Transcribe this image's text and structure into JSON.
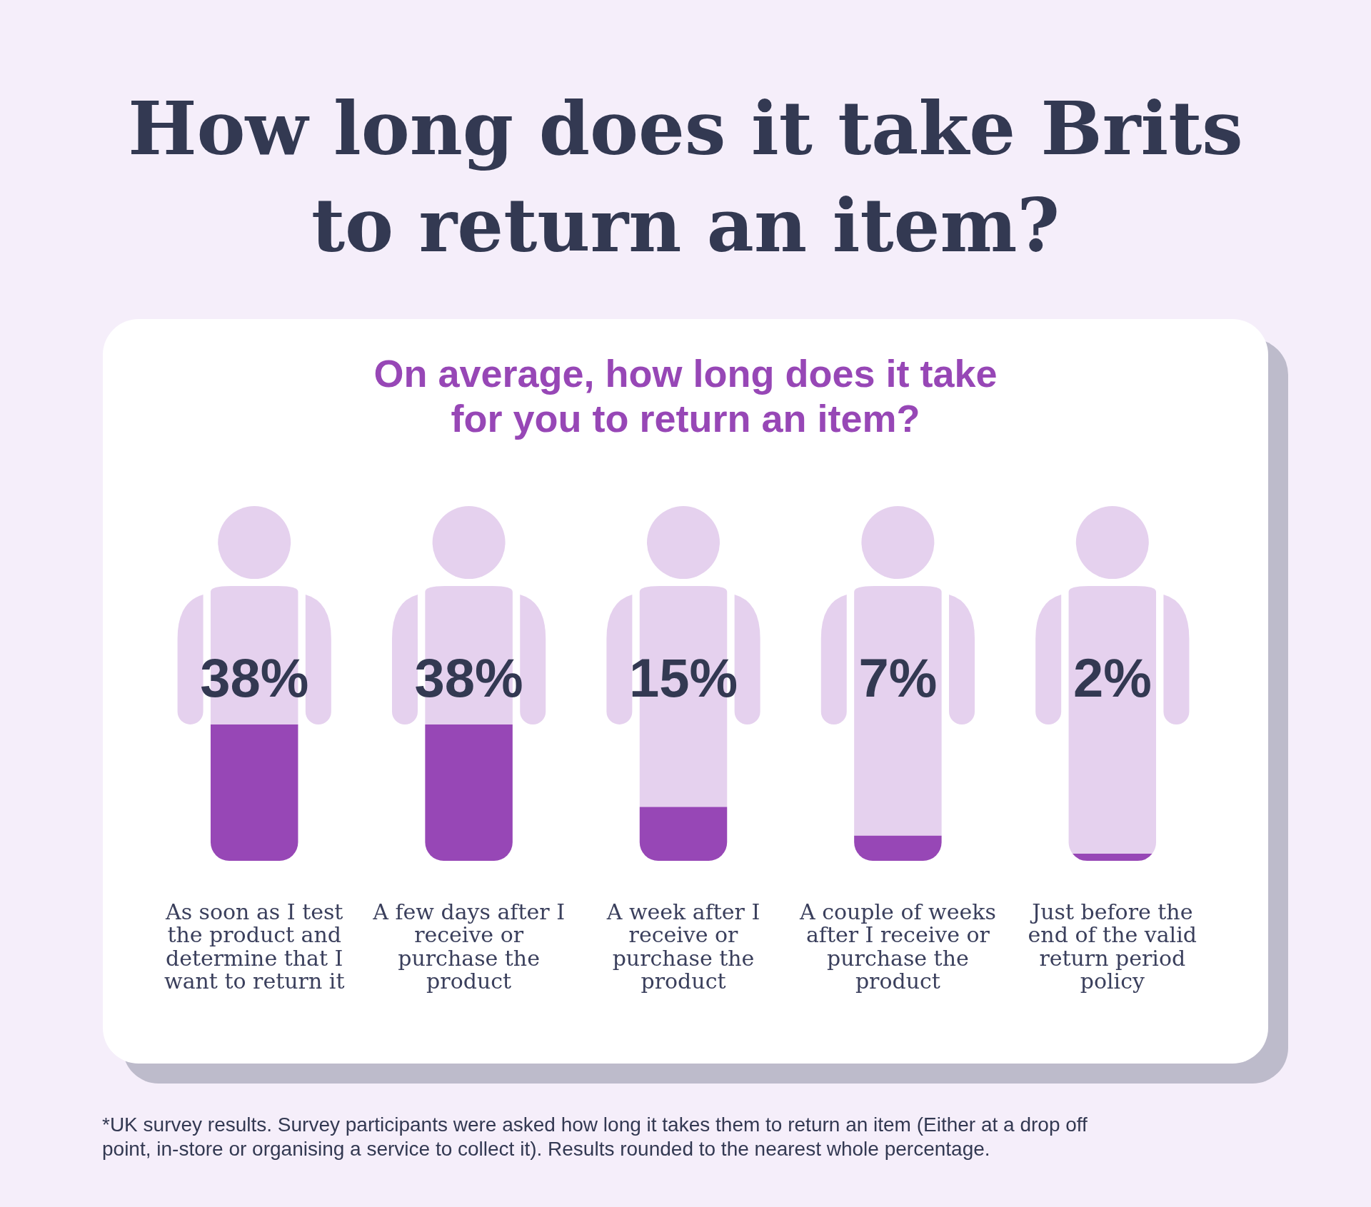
{
  "chart_data": {
    "type": "bar",
    "title": "How long does it take Brits to return an item?",
    "subtitle": "On average, how long does it take for you to return an item?",
    "categories": [
      "As soon as I test the product and determine that I want to return it",
      "A few days after I receive or purchase the product",
      "A week after I receive or purchase the product",
      "A couple of weeks after I receive or purchase the product",
      "Just before the end of the valid return period policy"
    ],
    "values": [
      38,
      38,
      15,
      7,
      2
    ],
    "value_labels": [
      "38%",
      "38%",
      "15%",
      "7%",
      "2%"
    ],
    "color": "#9747b6",
    "ylim": [
      0,
      38
    ],
    "tick_labels": "x",
    "annotations": [
      "*UK survey results. Survey participants were asked how long it takes them to return an item (Either at a drop off point, in-store or organising a service to collect it). Results rounded to the nearest whole percentage."
    ]
  }
}
